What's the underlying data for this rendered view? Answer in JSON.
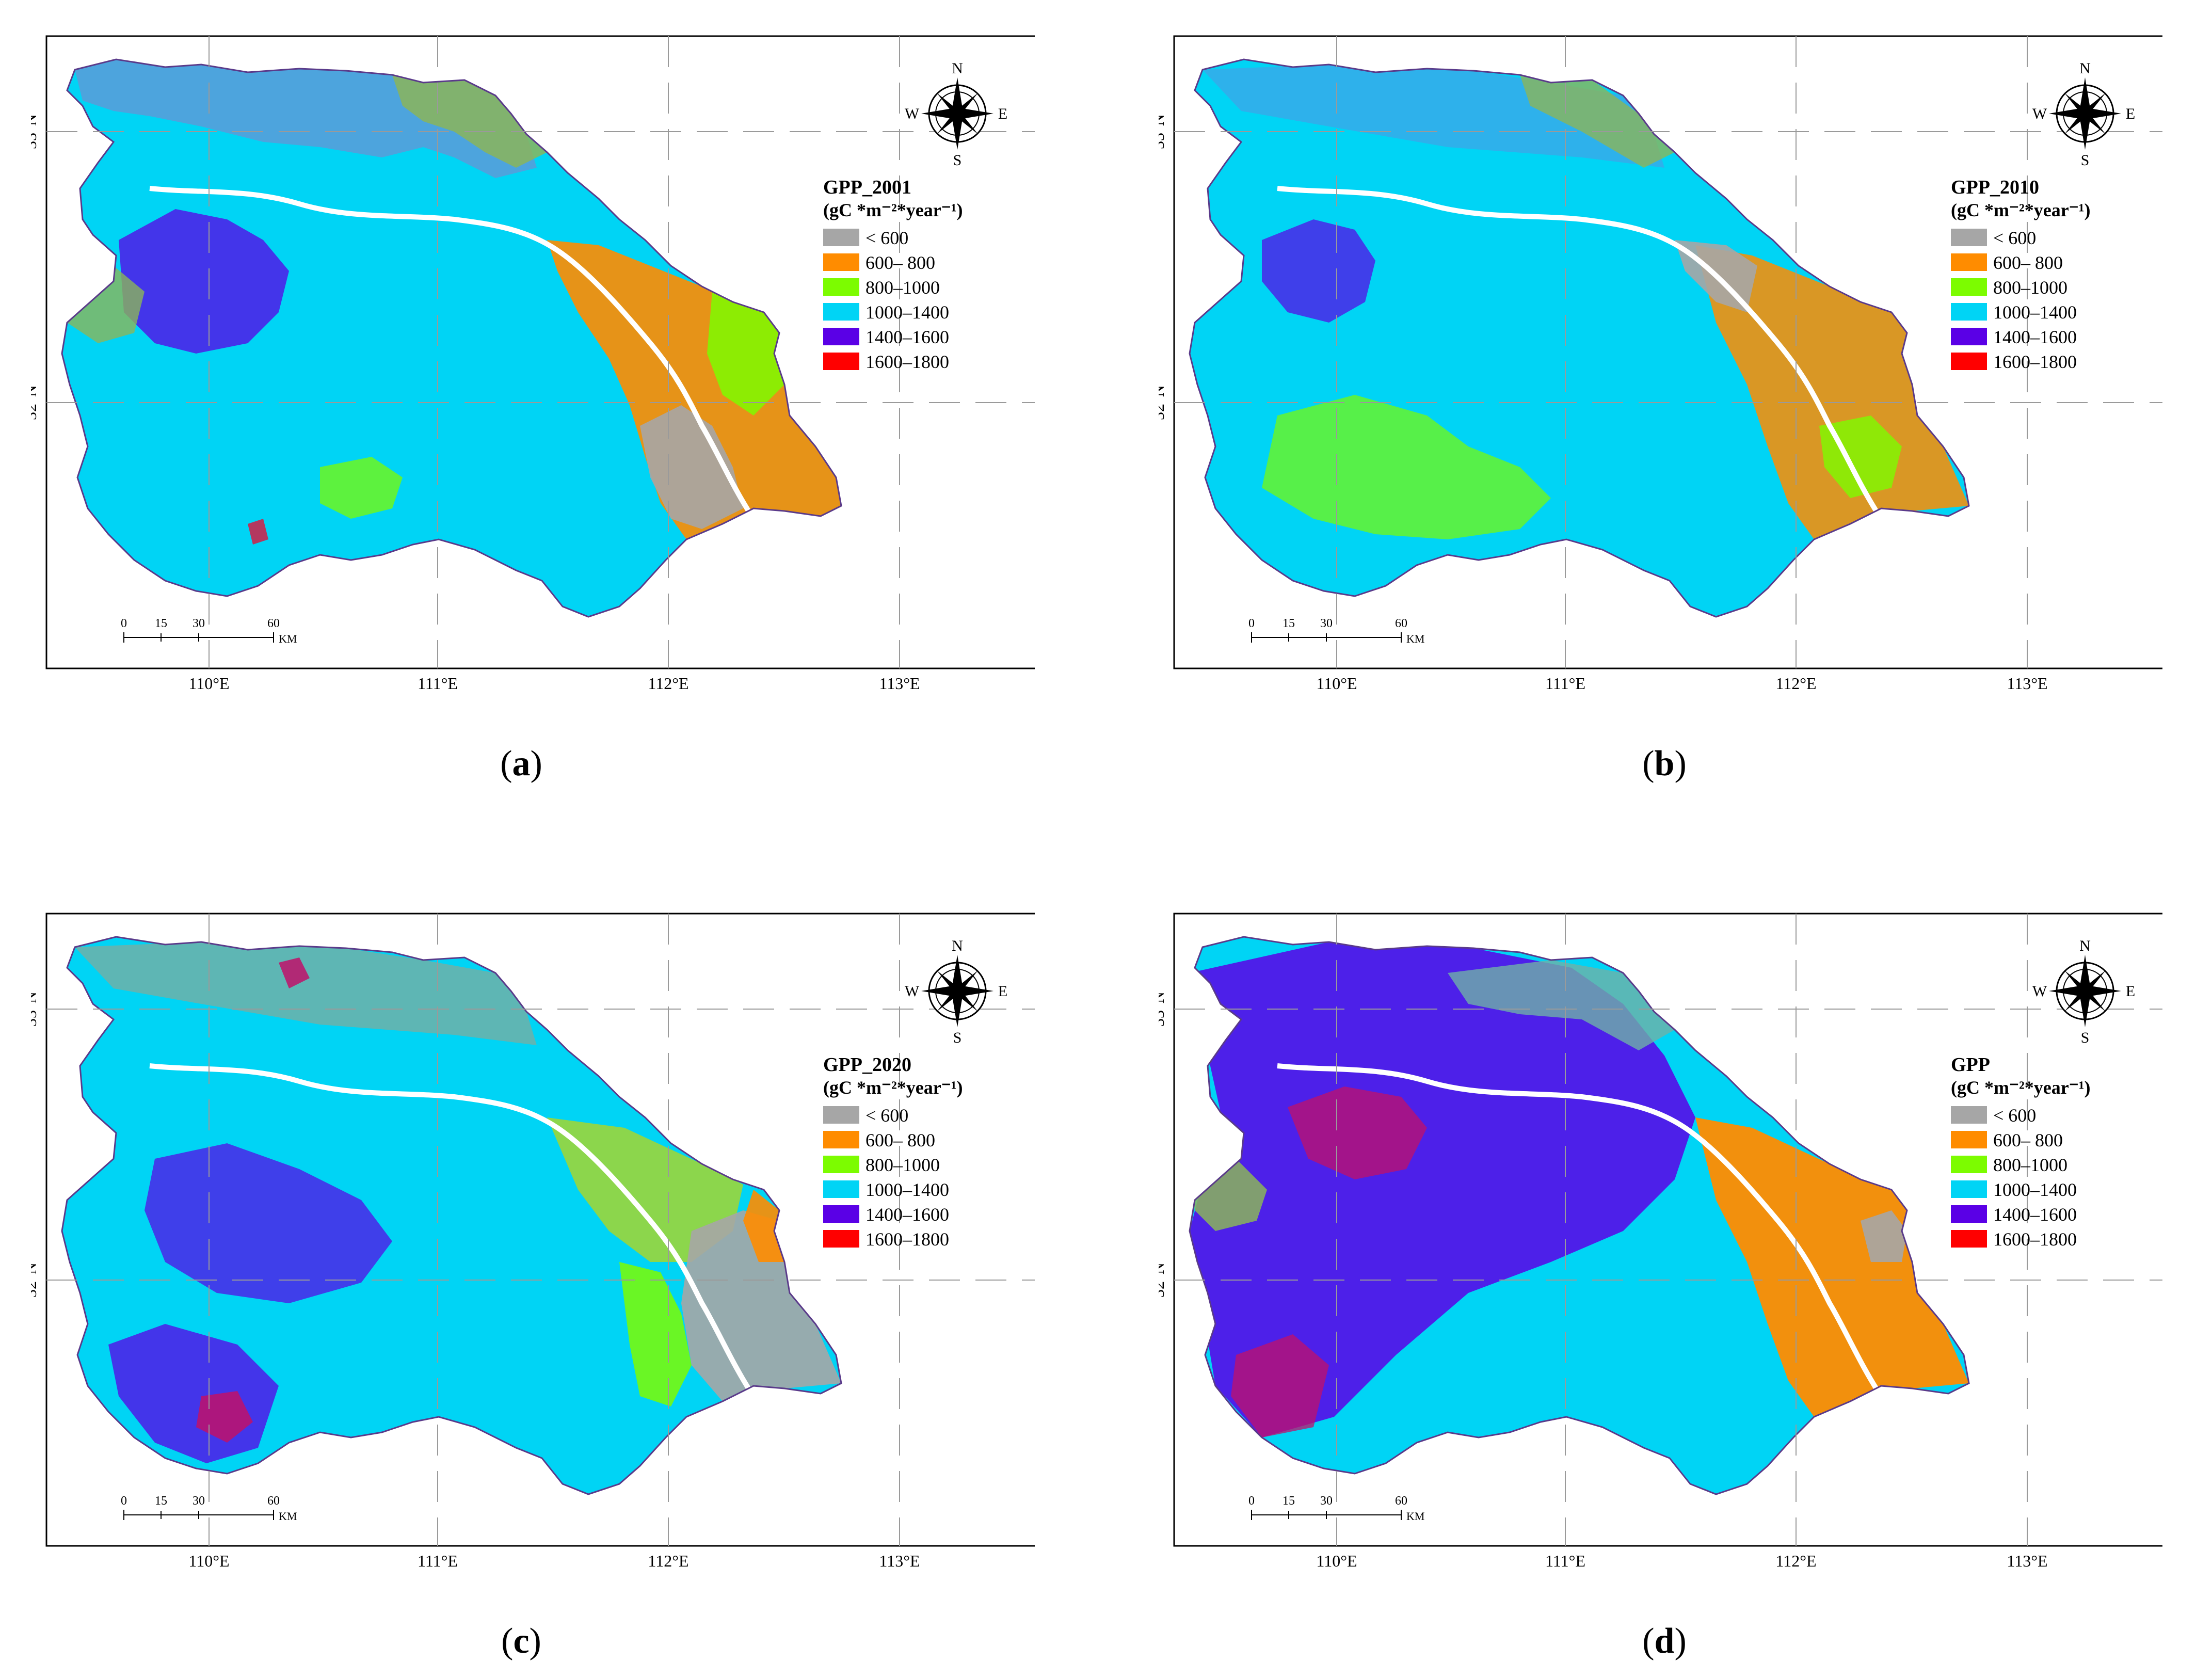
{
  "axes": {
    "lon_labels": [
      "110°E",
      "111°E",
      "112°E",
      "113°E"
    ],
    "lat_labels": [
      "33°N",
      "32°N"
    ]
  },
  "compass": {
    "n": "N",
    "s": "S",
    "e": "E",
    "w": "W"
  },
  "scale_bar": {
    "ticks": [
      "0",
      "15",
      "30",
      "60"
    ],
    "unit": "KM"
  },
  "legend": {
    "unit": "(gC *m⁻²*year⁻¹)",
    "classes": [
      {
        "label": "< 600",
        "color": "#a6a6a6"
      },
      {
        "label": "600– 800",
        "color": "#ff8c00"
      },
      {
        "label": "800–1000",
        "color": "#7cfc00"
      },
      {
        "label": "1000–1400",
        "color": "#00d4f5"
      },
      {
        "label": "1400–1600",
        "color": "#5a00e6"
      },
      {
        "label": "1600–1800",
        "color": "#ff0000"
      }
    ]
  },
  "panels": [
    {
      "legend_title": "GPP_2001",
      "caption_letter": "a"
    },
    {
      "legend_title": "GPP_2010",
      "caption_letter": "b"
    },
    {
      "legend_title": "GPP_2020",
      "caption_letter": "c"
    },
    {
      "legend_title": "GPP",
      "caption_letter": "d"
    }
  ]
}
